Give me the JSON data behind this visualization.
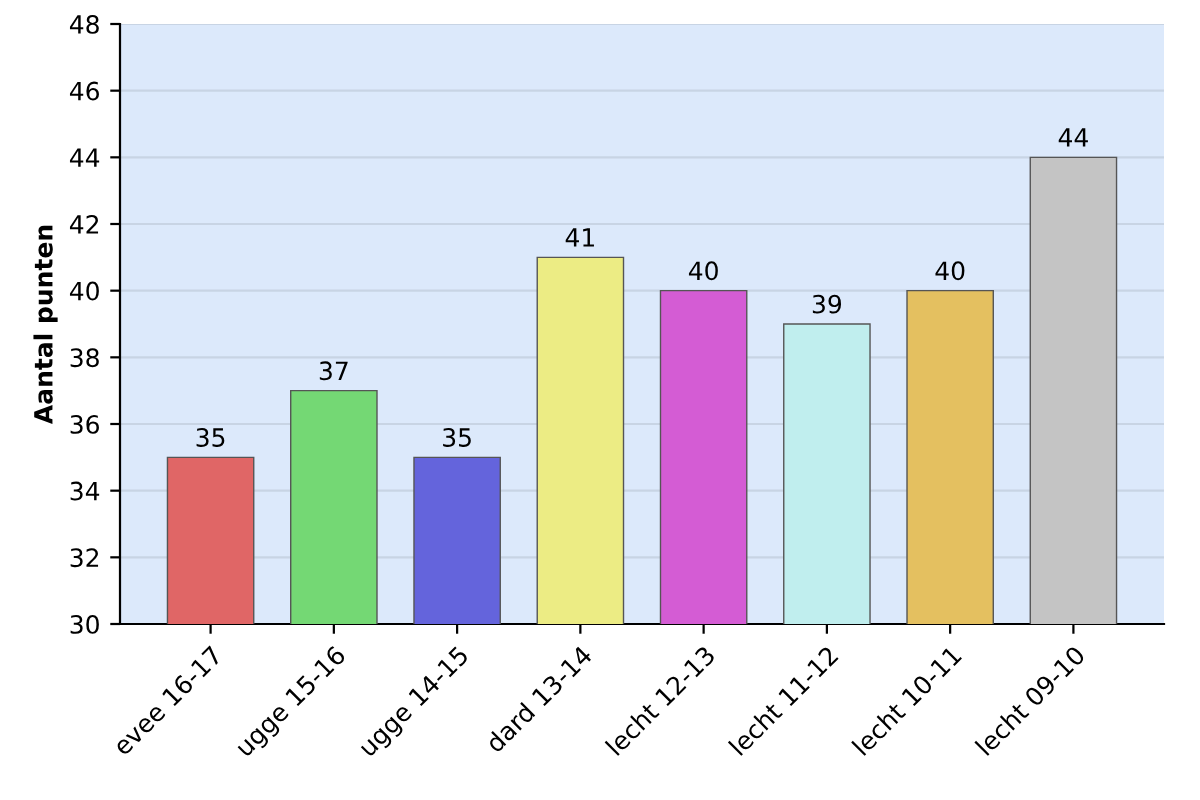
{
  "chart_data": {
    "type": "bar",
    "ylabel": "Aantal punten",
    "categories": [
      "evee 16-17",
      "ugge 15-16",
      "ugge 14-15",
      "dard 13-14",
      "lecht 12-13",
      "lecht 11-12",
      "lecht 10-11",
      "lecht 09-10"
    ],
    "values": [
      35,
      37,
      35,
      41,
      40,
      39,
      40,
      44
    ],
    "colors": [
      "#e06666",
      "#74d874",
      "#6464dc",
      "#ecec84",
      "#d45cd4",
      "#c0eeee",
      "#e4c060",
      "#c4c4c4"
    ],
    "ylim": [
      30,
      48
    ],
    "yticks": [
      30,
      32,
      34,
      36,
      38,
      40,
      42,
      44,
      46,
      48
    ],
    "grid": "y",
    "data_labels": true
  }
}
